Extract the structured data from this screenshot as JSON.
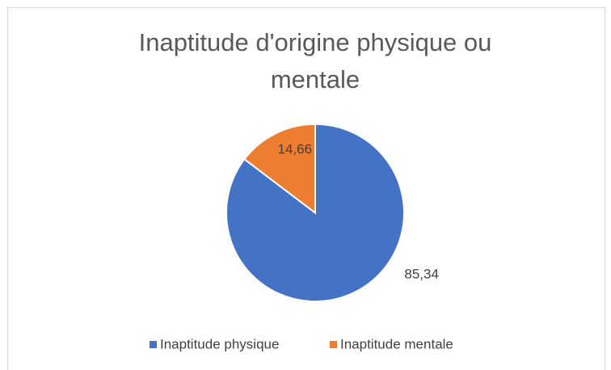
{
  "chart_data": {
    "type": "pie",
    "title": "Inaptitude d'origine physique ou mentale",
    "categories": [
      "Inaptitude physique",
      "Inaptitude mentale"
    ],
    "values": [
      85.34,
      14.66
    ],
    "value_labels": [
      "85,34",
      "14,66"
    ],
    "colors": [
      "#4472c4",
      "#ed7d31"
    ],
    "legend": "bottom"
  }
}
